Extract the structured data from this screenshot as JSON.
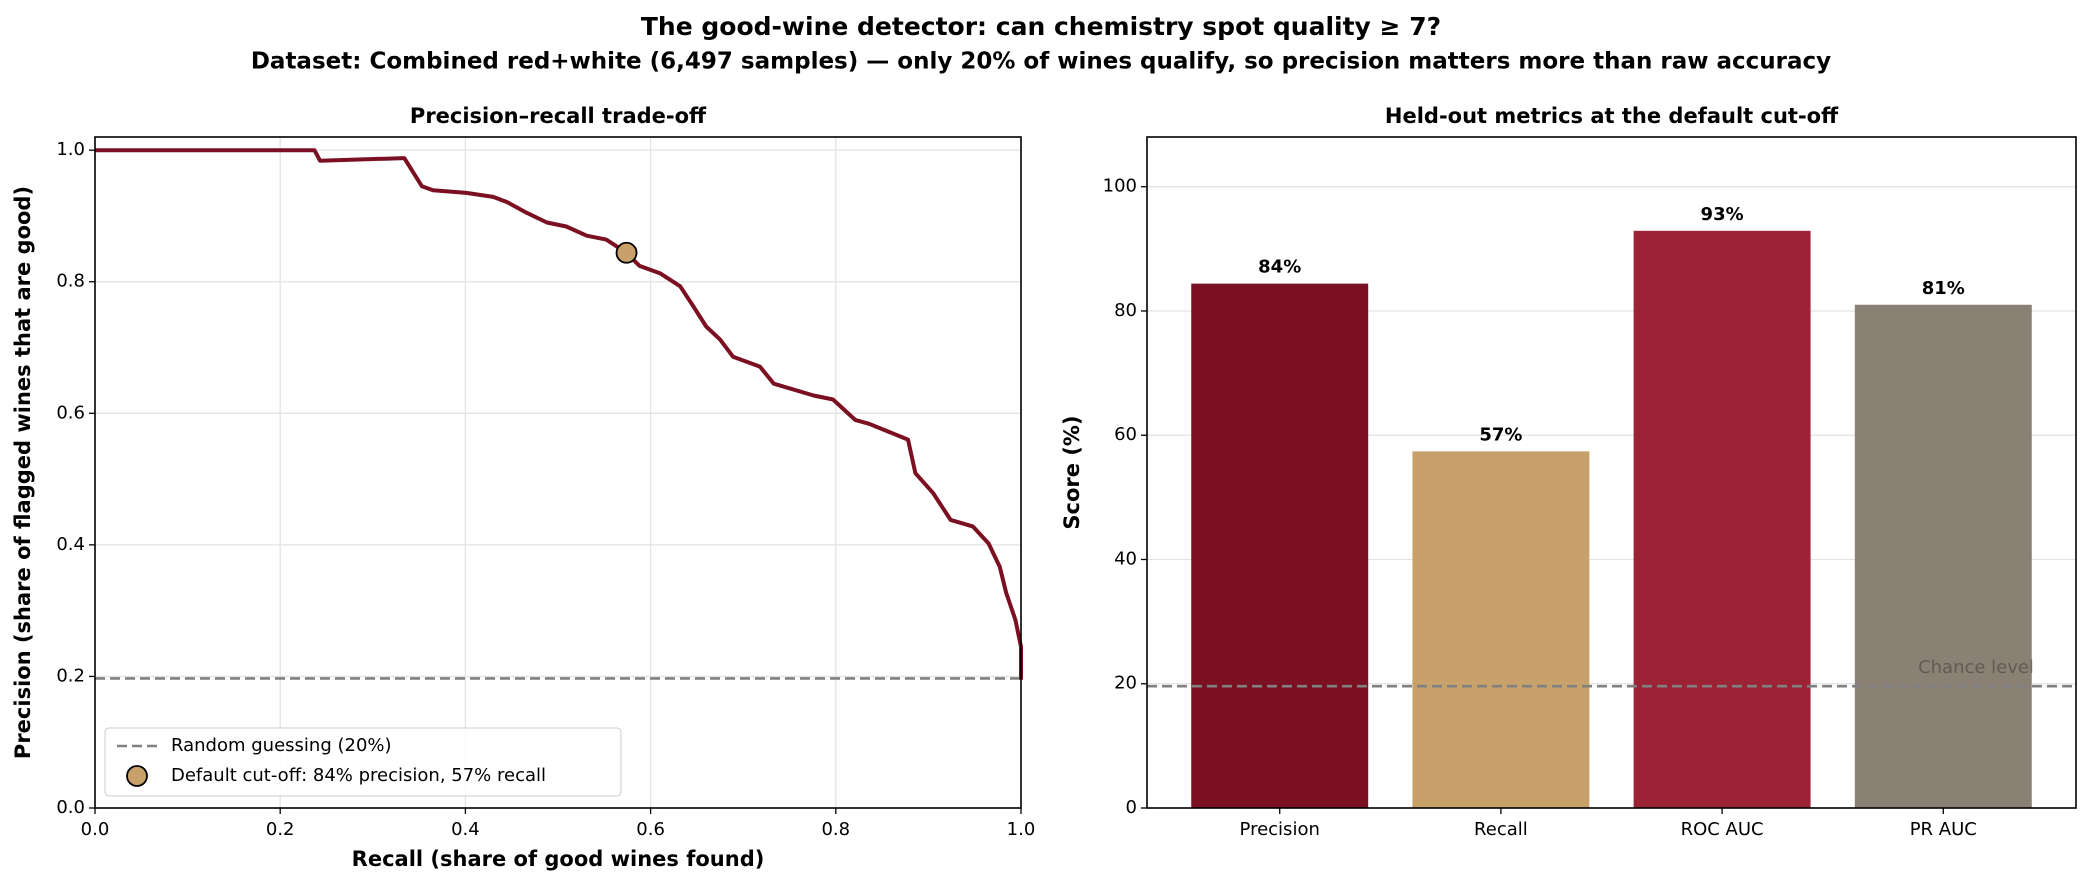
{
  "title": "The good-wine detector: can chemistry spot quality ≥ 7?",
  "subtitle": "Dataset: Combined red+white (6,497 samples) — only 20% of wines qualify, so precision matters more than raw accuracy",
  "chart_data": [
    {
      "type": "line",
      "title": "Precision–recall trade-off",
      "xlabel": "Recall (share of good wines found)",
      "ylabel": "Precision (share of flagged wines that are good)",
      "x": [
        0,
        0.237,
        0.243,
        0.334,
        0.353,
        0.365,
        0.401,
        0.43,
        0.445,
        0.466,
        0.488,
        0.509,
        0.531,
        0.552,
        0.574,
        0.588,
        0.61,
        0.632,
        0.646,
        0.66,
        0.675,
        0.689,
        0.718,
        0.733,
        0.776,
        0.797,
        0.821,
        0.836,
        0.878,
        0.886,
        0.905,
        0.924,
        0.948,
        0.965,
        0.977,
        0.984,
        0.994,
        1.0,
        1.0
      ],
      "values": [
        1.0,
        1.0,
        0.984,
        0.988,
        0.945,
        0.939,
        0.935,
        0.929,
        0.921,
        0.905,
        0.89,
        0.884,
        0.87,
        0.864,
        0.844,
        0.824,
        0.813,
        0.793,
        0.763,
        0.732,
        0.712,
        0.686,
        0.671,
        0.645,
        0.627,
        0.621,
        0.59,
        0.584,
        0.56,
        0.509,
        0.479,
        0.438,
        0.428,
        0.402,
        0.367,
        0.327,
        0.286,
        0.245,
        0.195
      ],
      "color": "#7b1022",
      "reference_line": {
        "value": 0.197,
        "label": "Random guessing (20%)",
        "color": "#808080"
      },
      "marker": {
        "x": 0.574,
        "y": 0.844,
        "label": "Default cut-off: 84% precision, 57% recall",
        "color": "#c8a06a"
      },
      "xlim": [
        0,
        1
      ],
      "ylim": [
        0,
        1.02
      ],
      "xticks": [
        {
          "value": 0,
          "label": "0.0"
        },
        {
          "value": 0.2,
          "label": "0.2"
        },
        {
          "value": 0.4,
          "label": "0.4"
        },
        {
          "value": 0.6,
          "label": "0.6"
        },
        {
          "value": 0.8,
          "label": "0.8"
        },
        {
          "value": 1,
          "label": "1.0"
        }
      ],
      "yticks": [
        {
          "value": 0,
          "label": "0.0"
        },
        {
          "value": 0.2,
          "label": "0.2"
        },
        {
          "value": 0.4,
          "label": "0.4"
        },
        {
          "value": 0.6,
          "label": "0.6"
        },
        {
          "value": 0.8,
          "label": "0.8"
        },
        {
          "value": 1,
          "label": "1.0"
        }
      ],
      "grid": true,
      "legend": "lower left"
    },
    {
      "type": "bar",
      "title": "Held-out metrics at the default cut-off",
      "ylabel": "Score (%)",
      "categories": [
        "Precision",
        "Recall",
        "ROC AUC",
        "PR AUC"
      ],
      "values": [
        84.4,
        57.4,
        92.9,
        81.0
      ],
      "value_labels": [
        "84%",
        "57%",
        "93%",
        "81%"
      ],
      "colors": [
        "#7b1022",
        "#c8a06a",
        "#9b2335",
        "#8a8174"
      ],
      "reference_line": {
        "value": 19.6,
        "label": "Chance level",
        "color": "#808080"
      },
      "ylim": [
        0,
        108
      ],
      "yticks": [
        0,
        20,
        40,
        60,
        80,
        100
      ],
      "grid": true
    }
  ]
}
